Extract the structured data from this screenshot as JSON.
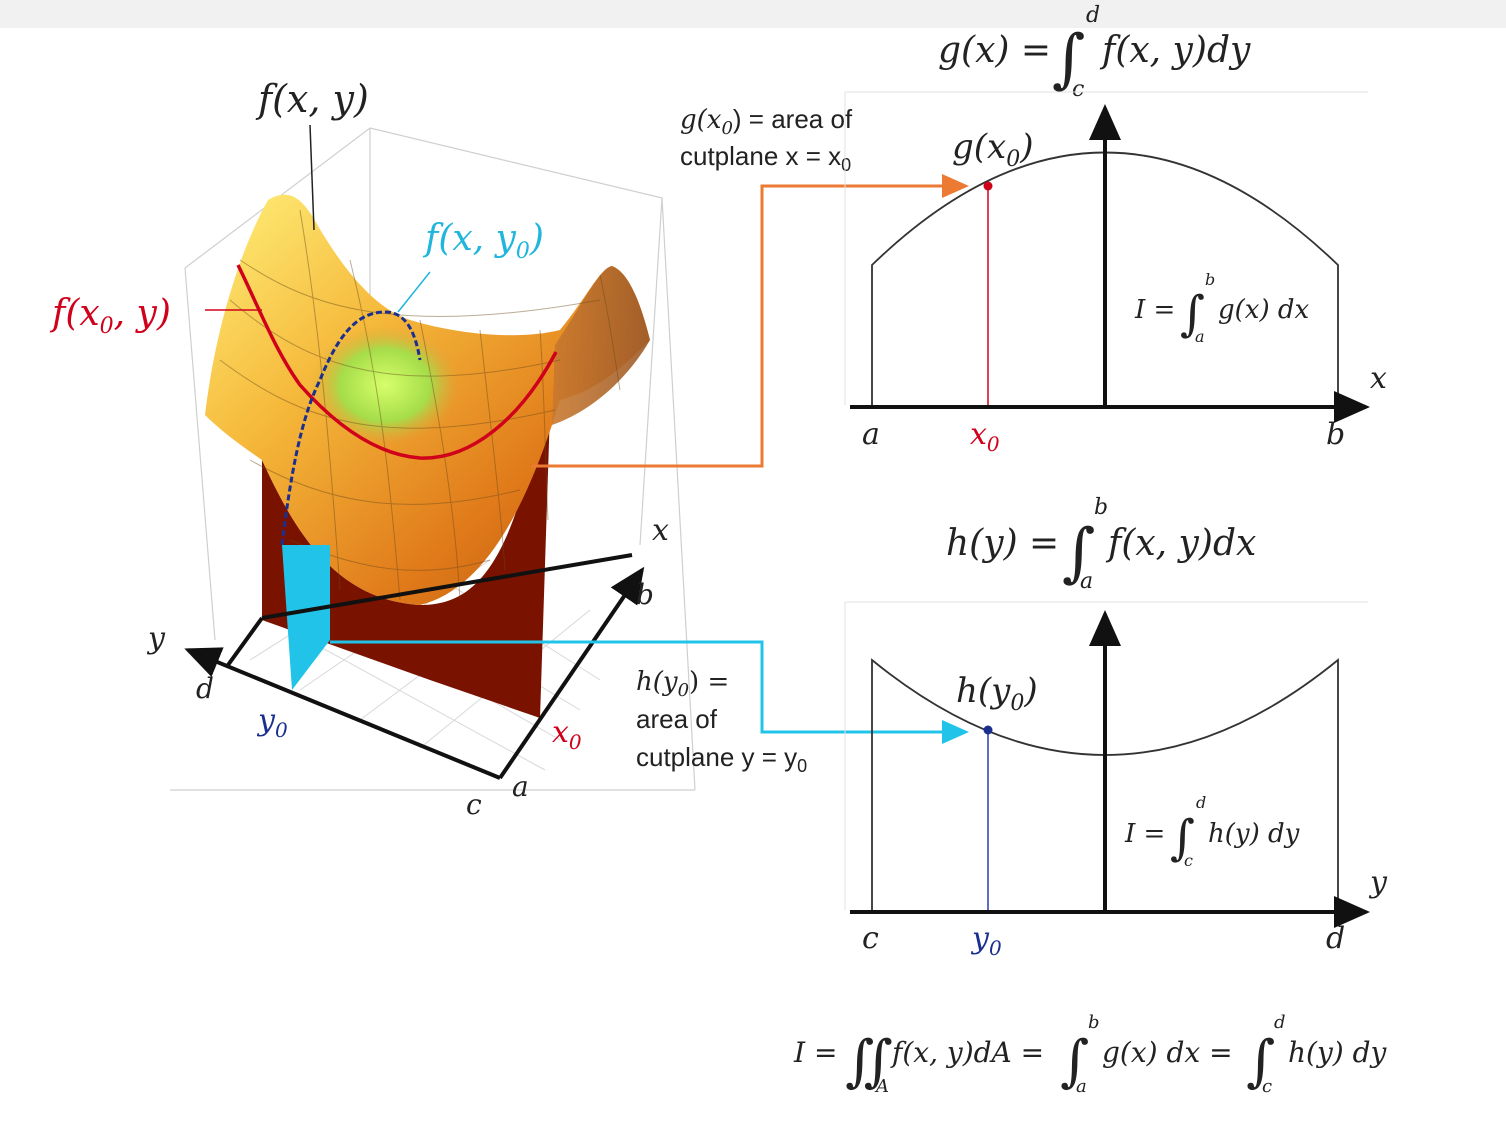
{
  "colors": {
    "red": "#d0021b",
    "blue": "#1fb5dd",
    "navy": "#1a2f8f",
    "orange": "#ec7a33",
    "cyan": "#21c4e8",
    "dark_red": "#7a1200",
    "axis": "#111111"
  },
  "surface": {
    "label_f_xy": "f(x, y)",
    "label_f_xy0": "f(x, y",
    "label_f_x0y": "f(x",
    "label_f_x0y_tail": ", y)",
    "sub0": "0",
    "close_paren": ")"
  },
  "axes3d": {
    "x": "x",
    "y": "y",
    "a": "a",
    "b": "b",
    "c": "c",
    "d": "d",
    "x0": "x",
    "y0": "y",
    "sub0": "0"
  },
  "annotations": {
    "g_line1_lhs": "g(x",
    "g_line1_rhs": ") = area of",
    "g_line2": "cutplane x = x",
    "h_line1": "h(y",
    "h_line1_rhs": ") =",
    "h_line2": "area of",
    "h_line3": "cutplane y = y",
    "sub0": "0"
  },
  "top_chart": {
    "formula_lhs": "g(x) = ",
    "formula_integrand": "f(x, y)dy",
    "upper": "d",
    "lower": "c",
    "point_label": "g(x",
    "point_label_tail": ")",
    "integral_lhs": "I = ",
    "integral_integrand": "g(x) dx",
    "integral_upper": "b",
    "integral_lower": "a",
    "axis_label": "x",
    "tick_start": "a",
    "tick_mid": "x",
    "tick_end": "b",
    "sub0": "0"
  },
  "bottom_chart": {
    "formula_lhs": "h(y) = ",
    "formula_integrand": "f(x, y)dx",
    "upper": "b",
    "lower": "a",
    "point_label": "h(y",
    "point_label_tail": ")",
    "integral_lhs": "I = ",
    "integral_integrand": "h(y) dy",
    "integral_upper": "d",
    "integral_lower": "c",
    "axis_label": "y",
    "tick_start": "c",
    "tick_mid": "y",
    "tick_end": "d",
    "sub0": "0"
  },
  "bottom_formula": {
    "lhs": "I = ",
    "double_integrand": "f(x, y)dA = ",
    "region": "A",
    "mid_integrand": "g(x) dx = ",
    "mid_upper": "b",
    "mid_lower": "a",
    "end_integrand": "h(y) dy",
    "end_upper": "d",
    "end_lower": "c"
  }
}
